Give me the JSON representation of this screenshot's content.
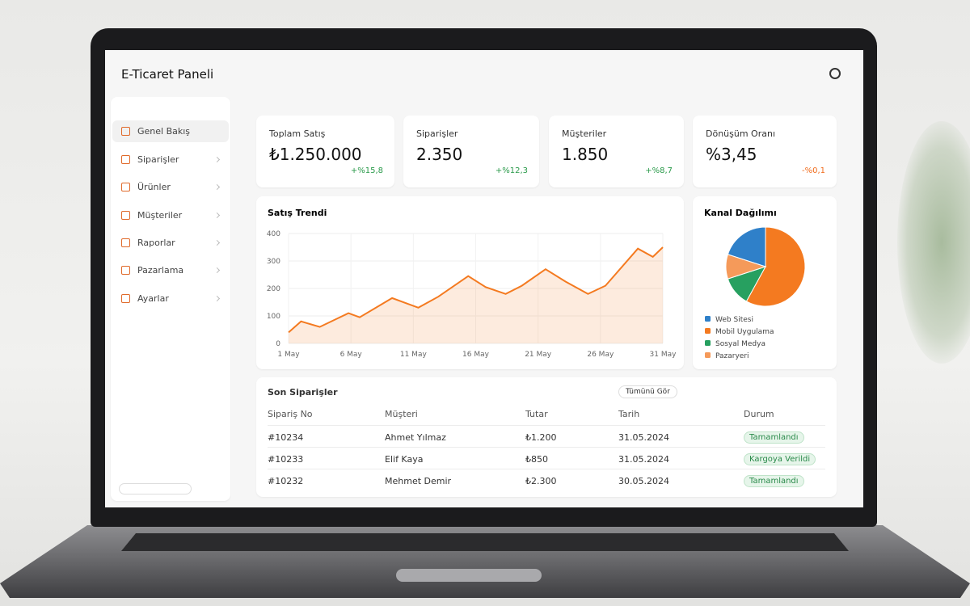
{
  "header": {
    "title": "E-Ticaret Paneli"
  },
  "sidebar": {
    "items": [
      "Genel Bakış",
      "Siparişler",
      "Ürünler",
      "Müşteriler",
      "Raporlar",
      "Pazarlama",
      "Ayarlar"
    ]
  },
  "kpis": [
    {
      "label": "Toplam Satış",
      "value": "₺1.250.000",
      "change": "+%15,8"
    },
    {
      "label": "Siparişler",
      "value": "2.350",
      "change": "+%12,3"
    },
    {
      "label": "Müşteriler",
      "value": "1.850",
      "change": "+%8,7"
    },
    {
      "label": "Dönüşüm Oranı",
      "value": "%3,45",
      "change": "-%0,1"
    }
  ],
  "chart_data": [
    {
      "type": "line",
      "title": "Satış Trendi",
      "x": [
        1,
        2,
        3.5,
        5.8,
        6.7,
        9.3,
        11.4,
        13,
        15.4,
        16.8,
        18.4,
        19.7,
        21.6,
        23.2,
        25,
        26.4,
        29,
        30.2,
        31
      ],
      "xlim": [
        1,
        31
      ],
      "xticks": [
        {
          "value": 1,
          "label": "1 May"
        },
        {
          "value": 6,
          "label": "6 May"
        },
        {
          "value": 11,
          "label": "11 May"
        },
        {
          "value": 16,
          "label": "16 May"
        },
        {
          "value": 21,
          "label": "21 May"
        },
        {
          "value": 26,
          "label": "26 May"
        },
        {
          "value": 31,
          "label": "31 May"
        }
      ],
      "ylim": [
        0,
        400
      ],
      "yticks": [
        0,
        100,
        200,
        300,
        400
      ],
      "grid": true,
      "series": [
        {
          "color": "#f47a20",
          "values": [
            40,
            80,
            60,
            110,
            95,
            165,
            130,
            170,
            245,
            205,
            180,
            210,
            270,
            225,
            180,
            210,
            345,
            315,
            350
          ]
        }
      ]
    },
    {
      "type": "pie",
      "title": "Kanal Dağılımı",
      "categories": [
        "Web Sitesi",
        "Mobil Uygulama",
        "Sosyal Medya",
        "Pazaryeri"
      ],
      "values": [
        20,
        58,
        12,
        10
      ],
      "colors": [
        "#2f80c9",
        "#f47a20",
        "#27a060",
        "#f59a5a"
      ]
    }
  ],
  "orders": {
    "title": "Son Siparişler",
    "button": "Tümünü Gör",
    "columns": [
      "Sipariş No",
      "Müşteri",
      "Tutar",
      "Tarih",
      "Durum"
    ],
    "rows": [
      [
        "#10234",
        "Ahmet Yılmaz",
        "₺1.200",
        "31.05.2024",
        "Tamamlandı"
      ],
      [
        "#10233",
        "Elif Kaya",
        "₺850",
        "31.05.2024",
        "Kargoya Verildi"
      ],
      [
        "#10232",
        "Mehmet Demir",
        "₺2.300",
        "30.05.2024",
        "Tamamlandı"
      ]
    ]
  }
}
